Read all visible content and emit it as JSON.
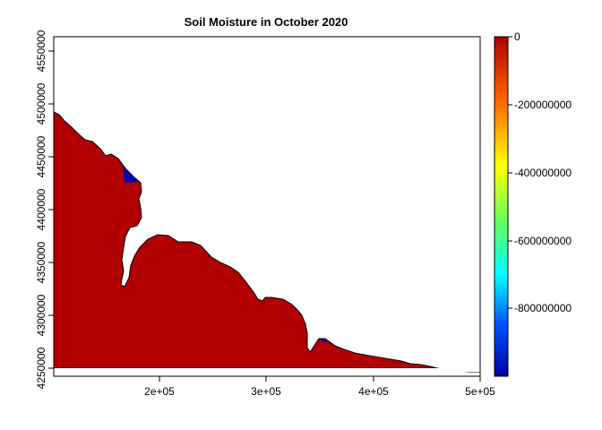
{
  "title": "Soil Moisture in October 2020",
  "map": {
    "x_ticks": [
      "2e+05",
      "3e+05",
      "4e+05",
      "5e+05"
    ],
    "y_ticks": [
      "4250000",
      "4300000",
      "4350000",
      "4400000",
      "4450000",
      "4500000",
      "4550000"
    ],
    "xlim": [
      100000,
      500000
    ],
    "ylim": [
      4245000,
      4565000
    ],
    "land_color": "#B20000",
    "anomaly_color": "#0000B0"
  },
  "legend": {
    "ticks": [
      "0",
      "-200000000",
      "-400000000",
      "-600000000",
      "-800000000"
    ],
    "colors": [
      "#B00000",
      "#FF6000",
      "#FFFF00",
      "#60FF60",
      "#00FFFF",
      "#0050FF",
      "#0000A0"
    ]
  }
}
